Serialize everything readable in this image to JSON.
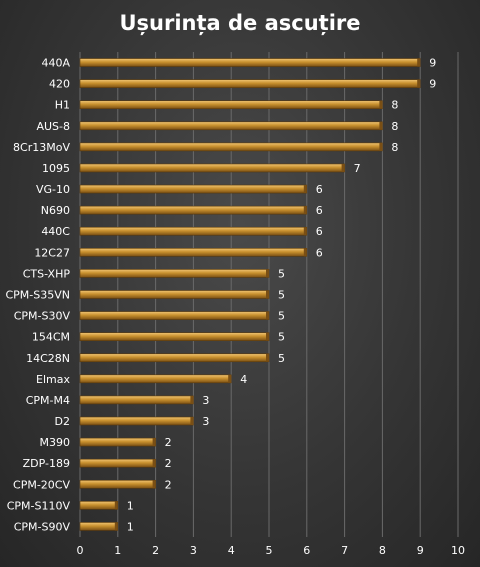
{
  "chart_data": {
    "type": "bar",
    "orientation": "horizontal",
    "title": "Ușurința de ascuțire",
    "categories": [
      "440A",
      "420",
      "H1",
      "AUS-8",
      "8Cr13MoV",
      "1095",
      "VG-10",
      "N690",
      "440C",
      "12C27",
      "CTS-XHP",
      "CPM-S35VN",
      "CPM-S30V",
      "154CM",
      "14C28N",
      "Elmax",
      "CPM-M4",
      "D2",
      "M390",
      "ZDP-189",
      "CPM-20CV",
      "CPM-S110V",
      "CPM-S90V"
    ],
    "values": [
      9,
      9,
      8,
      8,
      8,
      7,
      6,
      6,
      6,
      6,
      5,
      5,
      5,
      5,
      5,
      4,
      3,
      3,
      2,
      2,
      2,
      1,
      1
    ],
    "xlim": [
      0,
      10
    ],
    "xticks": [
      "0",
      "1",
      "2",
      "3",
      "4",
      "5",
      "6",
      "7",
      "8",
      "9",
      "10"
    ],
    "grid": true,
    "data_labels": true,
    "colors": {
      "bar": "#c8902e",
      "bar_dark": "#7a4f14",
      "text": "#ffffff",
      "grid": "#6a6a6a"
    }
  }
}
